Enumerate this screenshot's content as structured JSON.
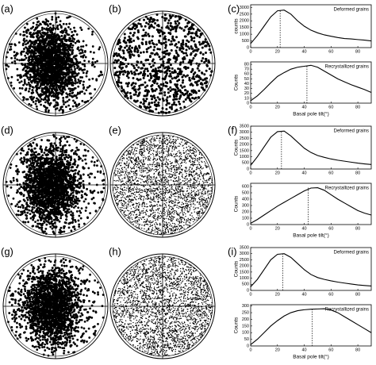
{
  "panels": [
    "(a)",
    "(b)",
    "(c)",
    "(d)",
    "(e)",
    "(f)",
    "(g)",
    "(h)",
    "(i)"
  ],
  "chart_data": [
    {
      "type": "line",
      "title": "Deformed grains",
      "ylabel": "counts",
      "x": [
        0,
        5,
        10,
        15,
        20,
        25,
        30,
        35,
        40,
        45,
        50,
        55,
        60,
        65,
        70,
        75,
        80,
        85,
        90
      ],
      "series": [
        {
          "color": "#000000",
          "values": [
            300,
            900,
            1600,
            2300,
            2750,
            2800,
            2500,
            2000,
            1600,
            1300,
            1100,
            950,
            850,
            750,
            680,
            650,
            600,
            560,
            500
          ]
        }
      ],
      "xlim": [
        0,
        90
      ],
      "xticks": [
        0,
        20,
        40,
        60,
        80
      ],
      "ylim": [
        0,
        3200
      ],
      "yticks": [
        0,
        500,
        1000,
        1500,
        2000,
        2500,
        3000
      ],
      "vline": 22
    },
    {
      "type": "line",
      "title": "Recrystallized grains",
      "ylabel": "Counts",
      "xlabel": "Basal pole tilt(°)",
      "x": [
        0,
        5,
        10,
        15,
        20,
        25,
        30,
        35,
        40,
        45,
        50,
        55,
        60,
        65,
        70,
        75,
        80,
        85,
        90
      ],
      "series": [
        {
          "color": "#000000",
          "values": [
            5,
            15,
            28,
            42,
            55,
            63,
            70,
            74,
            76,
            78,
            74,
            66,
            58,
            50,
            44,
            38,
            33,
            28,
            22
          ]
        }
      ],
      "xlim": [
        0,
        90
      ],
      "xticks": [
        0,
        20,
        40,
        60,
        80
      ],
      "ylim": [
        0,
        85
      ],
      "yticks": [
        0,
        10,
        20,
        30,
        40,
        50,
        60,
        70,
        80
      ],
      "vline": 42
    },
    {
      "type": "line",
      "title": "Deformed grains",
      "ylabel": "Counts",
      "x": [
        0,
        5,
        10,
        15,
        20,
        25,
        30,
        35,
        40,
        45,
        50,
        55,
        60,
        65,
        70,
        75,
        80,
        85,
        90
      ],
      "series": [
        {
          "color": "#000000",
          "values": [
            300,
            1000,
            1800,
            2600,
            3050,
            3100,
            2700,
            2200,
            1700,
            1350,
            1100,
            950,
            820,
            720,
            640,
            560,
            480,
            420,
            370
          ]
        }
      ],
      "xlim": [
        0,
        90
      ],
      "xticks": [
        0,
        20,
        40,
        60,
        80
      ],
      "ylim": [
        0,
        3500
      ],
      "yticks": [
        0,
        500,
        1000,
        1500,
        2000,
        2500,
        3000,
        3500
      ],
      "vline": 23
    },
    {
      "type": "line",
      "title": "Recrystallized grains",
      "ylabel": "Counts",
      "xlabel": "Basal pole tilt(°)",
      "x": [
        0,
        5,
        10,
        15,
        20,
        25,
        30,
        35,
        40,
        45,
        50,
        55,
        60,
        65,
        70,
        75,
        80,
        85,
        90
      ],
      "series": [
        {
          "color": "#000000",
          "values": [
            20,
            80,
            150,
            220,
            290,
            350,
            410,
            470,
            530,
            575,
            580,
            540,
            470,
            400,
            340,
            280,
            220,
            180,
            150
          ]
        }
      ],
      "xlim": [
        0,
        90
      ],
      "xticks": [
        0,
        20,
        40,
        60,
        80
      ],
      "ylim": [
        0,
        650
      ],
      "yticks": [
        0,
        100,
        200,
        300,
        400,
        500,
        600
      ],
      "vline": 43
    },
    {
      "type": "line",
      "title": "Deformed grains",
      "ylabel": "Counts",
      "x": [
        0,
        5,
        10,
        15,
        20,
        25,
        30,
        35,
        40,
        45,
        50,
        55,
        60,
        65,
        70,
        75,
        80,
        85,
        90
      ],
      "series": [
        {
          "color": "#000000",
          "values": [
            300,
            900,
            1700,
            2500,
            2950,
            3000,
            2700,
            2200,
            1700,
            1300,
            1050,
            900,
            780,
            680,
            600,
            520,
            450,
            400,
            360
          ]
        }
      ],
      "xlim": [
        0,
        90
      ],
      "xticks": [
        0,
        20,
        40,
        60,
        80
      ],
      "ylim": [
        0,
        3500
      ],
      "yticks": [
        0,
        500,
        1000,
        1500,
        2000,
        2500,
        3000,
        3500
      ],
      "vline": 24
    },
    {
      "type": "line",
      "title": "Recrystallized grains",
      "ylabel": "Counts",
      "xlabel": "Basal pole tilt(°)",
      "x": [
        0,
        5,
        10,
        15,
        20,
        25,
        30,
        35,
        40,
        45,
        50,
        55,
        60,
        65,
        70,
        75,
        80,
        85,
        90
      ],
      "series": [
        {
          "color": "#000000",
          "values": [
            10,
            50,
            100,
            150,
            190,
            225,
            250,
            265,
            272,
            276,
            278,
            280,
            270,
            250,
            220,
            190,
            160,
            130,
            100
          ]
        }
      ],
      "xlim": [
        0,
        90
      ],
      "xticks": [
        0,
        20,
        40,
        60,
        80
      ],
      "ylim": [
        0,
        310
      ],
      "yticks": [
        0,
        50,
        100,
        150,
        200,
        250,
        300
      ],
      "vline": 46
    }
  ]
}
